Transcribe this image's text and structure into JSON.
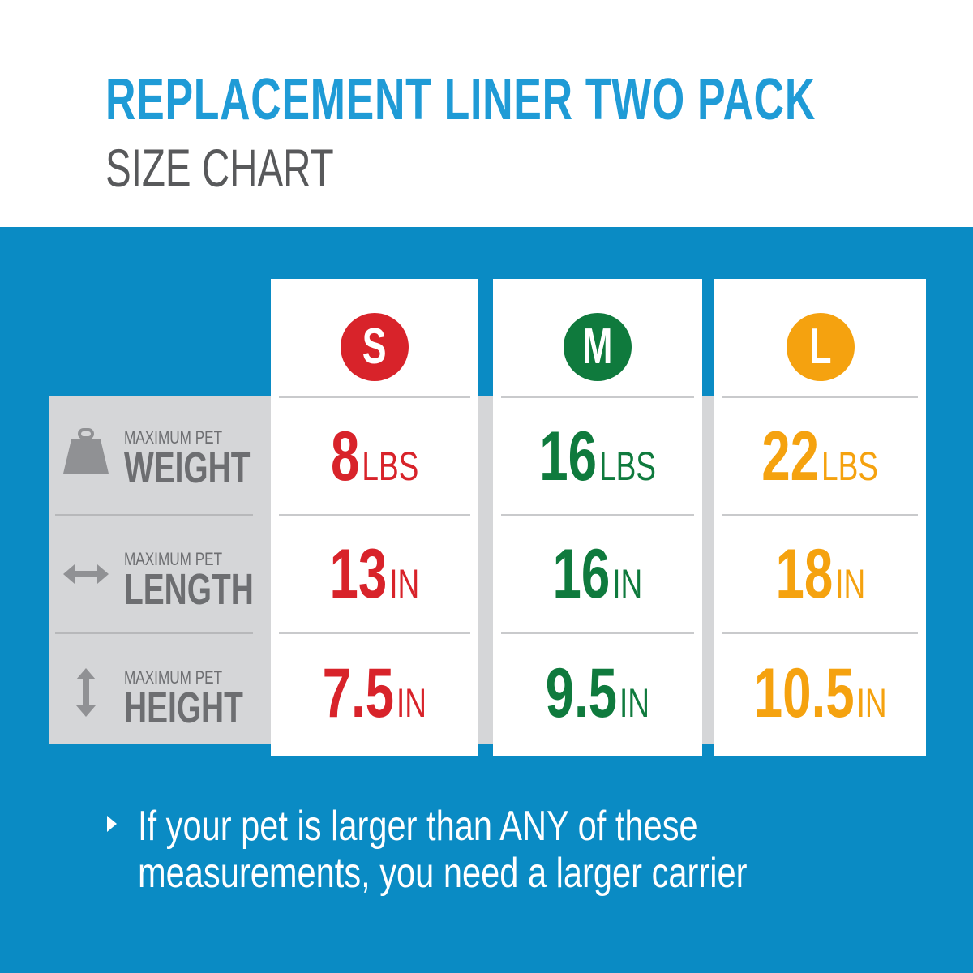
{
  "header": {
    "title": "REPLACEMENT LINER TWO PACK",
    "subtitle": "SIZE CHART"
  },
  "rows": [
    {
      "small": "MAXIMUM PET",
      "big": "WEIGHT",
      "icon": "weight-icon"
    },
    {
      "small": "MAXIMUM PET",
      "big": "LENGTH",
      "icon": "horizontal-arrows-icon"
    },
    {
      "small": "MAXIMUM PET",
      "big": "HEIGHT",
      "icon": "vertical-arrows-icon"
    }
  ],
  "sizes": [
    {
      "label": "S",
      "color": "#d8232a",
      "weight": {
        "value": "8",
        "unit": "LBS"
      },
      "length": {
        "value": "13",
        "unit": "IN"
      },
      "height": {
        "value": "7.5",
        "unit": "IN"
      }
    },
    {
      "label": "M",
      "color": "#0f7a3d",
      "weight": {
        "value": "16",
        "unit": "LBS"
      },
      "length": {
        "value": "16",
        "unit": "IN"
      },
      "height": {
        "value": "9.5",
        "unit": "IN"
      }
    },
    {
      "label": "L",
      "color": "#f5a20f",
      "weight": {
        "value": "22",
        "unit": "LBS"
      },
      "length": {
        "value": "18",
        "unit": "IN"
      },
      "height": {
        "value": "10.5",
        "unit": "IN"
      }
    }
  ],
  "note": {
    "line1": "If your pet is larger than ANY of these",
    "line2": "measurements, you need a larger carrier"
  },
  "colors": {
    "title": "#1f9bd6",
    "subtitle": "#58595b",
    "panel": "#0a8bc4",
    "label_bg": "#d5d6d8",
    "label_text": "#6d6e71"
  }
}
